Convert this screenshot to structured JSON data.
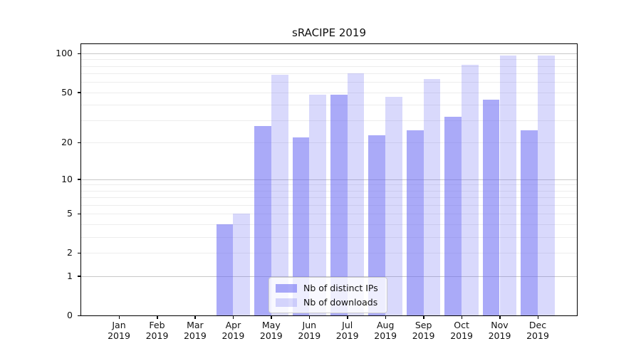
{
  "chart_data": {
    "type": "bar",
    "title": "sRACIPE 2019",
    "xlabel": "",
    "ylabel": "",
    "x_categories": [
      "Jan",
      "Feb",
      "Mar",
      "Apr",
      "May",
      "Jun",
      "Jul",
      "Aug",
      "Sep",
      "Oct",
      "Nov",
      "Dec"
    ],
    "x_year": "2019",
    "series": [
      {
        "name": "Nb of distinct IPs",
        "color": "rgba(100,100,243,0.55)",
        "values": [
          0,
          0,
          0,
          4,
          27,
          22,
          48,
          23,
          25,
          32,
          44,
          25
        ]
      },
      {
        "name": "Nb of downloads",
        "color": "rgba(100,100,243,0.245)",
        "values": [
          0,
          0,
          0,
          5,
          68,
          48,
          70,
          46,
          63,
          82,
          96,
          96
        ]
      }
    ],
    "yscale": "log1p",
    "ylim": [
      0,
      118
    ],
    "yticks": [
      {
        "value": 0,
        "label": "0"
      },
      {
        "value": 1,
        "label": "1"
      },
      {
        "value": 2,
        "label": "2"
      },
      {
        "value": 5,
        "label": "5"
      },
      {
        "value": 10,
        "label": "10"
      },
      {
        "value": 20,
        "label": "20"
      },
      {
        "value": 50,
        "label": "50"
      },
      {
        "value": 100,
        "label": "100"
      }
    ],
    "minor_gridlines": [
      2,
      3,
      4,
      5,
      6,
      7,
      8,
      9,
      20,
      30,
      40,
      50,
      60,
      70,
      80,
      90
    ],
    "major_gridlines": [
      1,
      10,
      100
    ],
    "grid": true,
    "legend_position": "lower center",
    "colors": {
      "grid_minor": "#ededed",
      "grid_major": "#c8c8c8",
      "axis": "#000000",
      "background": "#ffffff"
    }
  }
}
